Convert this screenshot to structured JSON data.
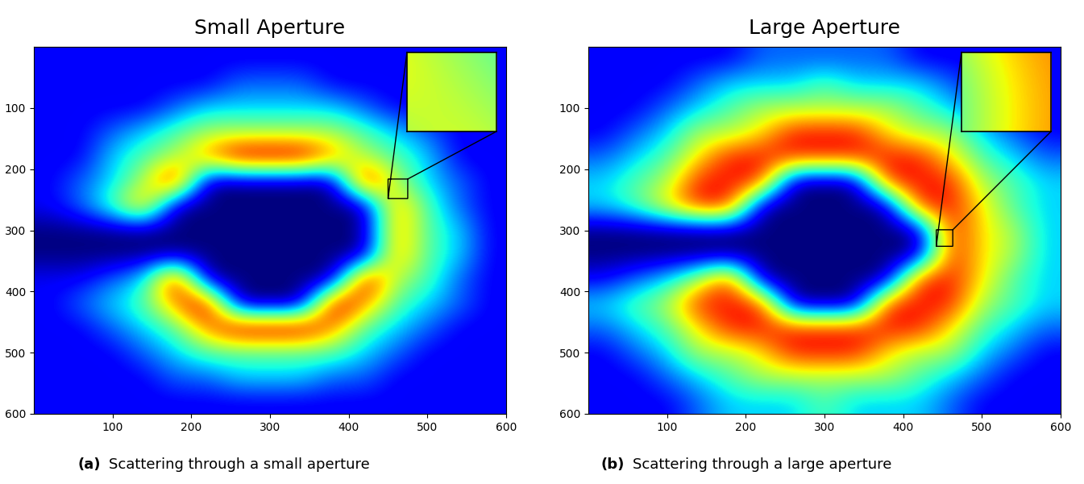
{
  "chart_data": [
    {
      "type": "heatmap",
      "title": "Small Aperture",
      "label": "(a)",
      "caption": "Scattering through a small aperture",
      "xlim": [
        0,
        600
      ],
      "ylim": [
        600,
        0
      ],
      "xticks": [
        100,
        200,
        300,
        400,
        500,
        600
      ],
      "yticks": [
        100,
        200,
        300,
        400,
        500,
        600
      ],
      "zoom": {
        "xlim": [
          450,
          475
        ],
        "ylim": [
          248,
          216
        ]
      },
      "cells": [
        [
          1,
          1,
          1,
          1,
          1,
          1,
          1,
          1,
          1,
          1,
          1,
          1,
          1,
          1,
          1
        ],
        [
          1,
          1,
          1,
          1,
          1,
          1,
          2,
          2,
          2,
          1,
          1,
          1,
          1,
          1,
          1
        ],
        [
          1,
          1,
          1,
          1,
          2,
          3,
          3,
          3,
          3,
          3,
          2,
          1,
          1,
          1,
          1
        ],
        [
          1,
          1,
          2,
          3,
          4,
          5,
          5,
          5,
          5,
          5,
          4,
          3,
          2,
          1,
          1
        ],
        [
          1,
          1,
          3,
          4,
          5,
          7,
          9,
          9,
          9,
          7,
          5,
          4,
          3,
          1,
          1
        ],
        [
          1,
          2,
          3,
          5,
          9,
          0,
          0,
          0,
          0,
          0,
          9,
          5,
          3,
          2,
          1
        ],
        [
          1,
          2,
          4,
          7,
          0,
          0,
          0,
          0,
          0,
          0,
          0,
          7,
          4,
          2,
          1
        ],
        [
          0,
          0,
          0,
          0,
          0,
          0,
          0,
          0,
          0,
          0,
          0,
          7,
          4,
          3,
          1
        ],
        [
          0,
          0,
          0,
          0,
          0,
          0,
          0,
          0,
          0,
          0,
          0,
          7,
          4,
          3,
          1
        ],
        [
          1,
          1,
          2,
          3,
          9,
          0,
          0,
          0,
          0,
          0,
          9,
          5,
          4,
          2,
          1
        ],
        [
          1,
          2,
          3,
          4,
          7,
          9,
          0,
          0,
          0,
          9,
          7,
          4,
          3,
          2,
          1
        ],
        [
          1,
          1,
          2,
          3,
          4,
          7,
          9,
          9,
          9,
          7,
          4,
          3,
          2,
          1,
          1
        ],
        [
          1,
          1,
          1,
          2,
          3,
          4,
          4,
          4,
          4,
          4,
          3,
          2,
          1,
          1,
          1
        ],
        [
          1,
          1,
          1,
          1,
          2,
          2,
          3,
          3,
          3,
          2,
          2,
          1,
          1,
          1,
          1
        ],
        [
          1,
          1,
          1,
          1,
          1,
          1,
          1,
          1,
          1,
          1,
          1,
          1,
          1,
          1,
          1
        ]
      ]
    },
    {
      "type": "heatmap",
      "title": "Large Aperture",
      "label": "(b)",
      "caption": "Scattering through a large aperture",
      "xlim": [
        0,
        600
      ],
      "ylim": [
        600,
        0
      ],
      "xticks": [
        100,
        200,
        300,
        400,
        500,
        600
      ],
      "yticks": [
        100,
        200,
        300,
        400,
        500,
        600
      ],
      "zoom": {
        "xlim": [
          442,
          463
        ],
        "ylim": [
          326,
          299
        ]
      },
      "cells": [
        [
          1,
          1,
          1,
          1,
          1,
          2,
          2,
          2,
          2,
          2,
          1,
          1,
          1,
          1,
          1
        ],
        [
          1,
          1,
          1,
          2,
          3,
          3,
          3,
          4,
          3,
          3,
          3,
          2,
          1,
          1,
          1
        ],
        [
          1,
          1,
          2,
          3,
          4,
          5,
          5,
          5,
          5,
          5,
          4,
          3,
          2,
          1,
          1
        ],
        [
          1,
          2,
          3,
          5,
          5,
          6,
          8,
          8,
          8,
          6,
          5,
          5,
          3,
          2,
          1
        ],
        [
          2,
          3,
          4,
          6,
          8,
          8,
          8,
          8,
          8,
          8,
          8,
          6,
          4,
          3,
          2
        ],
        [
          3,
          4,
          5,
          8,
          8,
          8,
          0,
          0,
          0,
          8,
          8,
          8,
          5,
          4,
          3
        ],
        [
          3,
          4,
          6,
          8,
          8,
          0,
          0,
          0,
          0,
          0,
          8,
          8,
          6,
          4,
          3
        ],
        [
          0,
          0,
          0,
          0,
          0,
          0,
          0,
          0,
          0,
          0,
          0,
          8,
          6,
          5,
          3
        ],
        [
          0,
          0,
          0,
          0,
          0,
          0,
          0,
          0,
          0,
          0,
          0,
          8,
          6,
          5,
          3
        ],
        [
          1,
          2,
          3,
          5,
          8,
          0,
          0,
          0,
          0,
          0,
          8,
          8,
          6,
          4,
          3
        ],
        [
          3,
          4,
          5,
          8,
          8,
          8,
          0,
          0,
          0,
          8,
          8,
          8,
          5,
          4,
          3
        ],
        [
          2,
          3,
          4,
          6,
          8,
          8,
          8,
          8,
          8,
          8,
          8,
          6,
          4,
          3,
          2
        ],
        [
          1,
          2,
          3,
          5,
          5,
          6,
          8,
          8,
          8,
          6,
          5,
          5,
          3,
          2,
          1
        ],
        [
          1,
          1,
          2,
          3,
          4,
          5,
          5,
          5,
          5,
          5,
          4,
          3,
          2,
          1,
          1
        ],
        [
          1,
          1,
          1,
          2,
          3,
          3,
          3,
          4,
          3,
          3,
          3,
          2,
          1,
          1,
          1
        ]
      ]
    }
  ]
}
